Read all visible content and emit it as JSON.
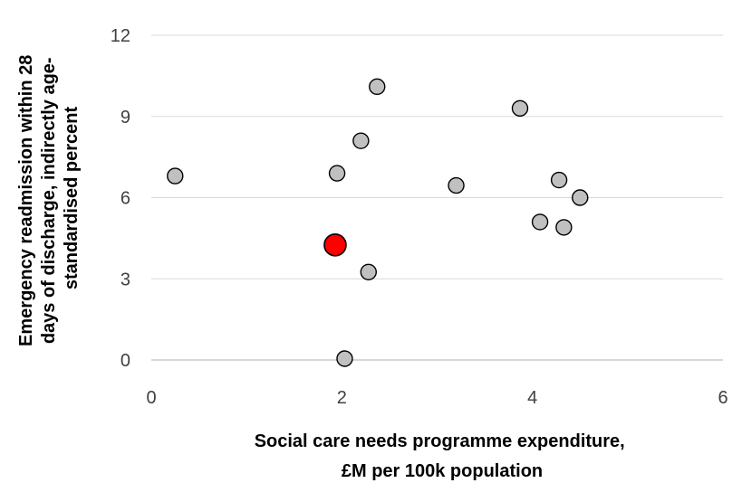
{
  "chart_data": {
    "type": "scatter",
    "xlabel_lines": [
      "Social care needs programme expenditure,",
      "£M per 100k population"
    ],
    "ylabel_lines": [
      "Emergency readmission within 28",
      "days of discharge, indirectly age-",
      "standardised percent"
    ],
    "xlim": [
      0,
      6
    ],
    "ylim": [
      0,
      12
    ],
    "xticks": [
      "0",
      "2",
      "4",
      "6"
    ],
    "yticks": [
      "0",
      "3",
      "6",
      "9",
      "12"
    ],
    "grid": "horizontal",
    "series": [
      {
        "color": "#c0c0c0",
        "points": [
          {
            "x": 0.25,
            "y": 6.8
          },
          {
            "x": 1.95,
            "y": 6.9
          },
          {
            "x": 2.2,
            "y": 8.1
          },
          {
            "x": 2.37,
            "y": 10.1
          },
          {
            "x": 2.28,
            "y": 3.25
          },
          {
            "x": 2.03,
            "y": 0.05
          },
          {
            "x": 3.2,
            "y": 6.45
          },
          {
            "x": 3.87,
            "y": 9.3
          },
          {
            "x": 4.28,
            "y": 6.65
          },
          {
            "x": 4.5,
            "y": 6.0
          },
          {
            "x": 4.08,
            "y": 5.1
          },
          {
            "x": 4.33,
            "y": 4.9
          }
        ]
      },
      {
        "color": "#ff0000",
        "highlight": true,
        "points": [
          {
            "x": 1.93,
            "y": 4.25
          }
        ]
      }
    ]
  }
}
